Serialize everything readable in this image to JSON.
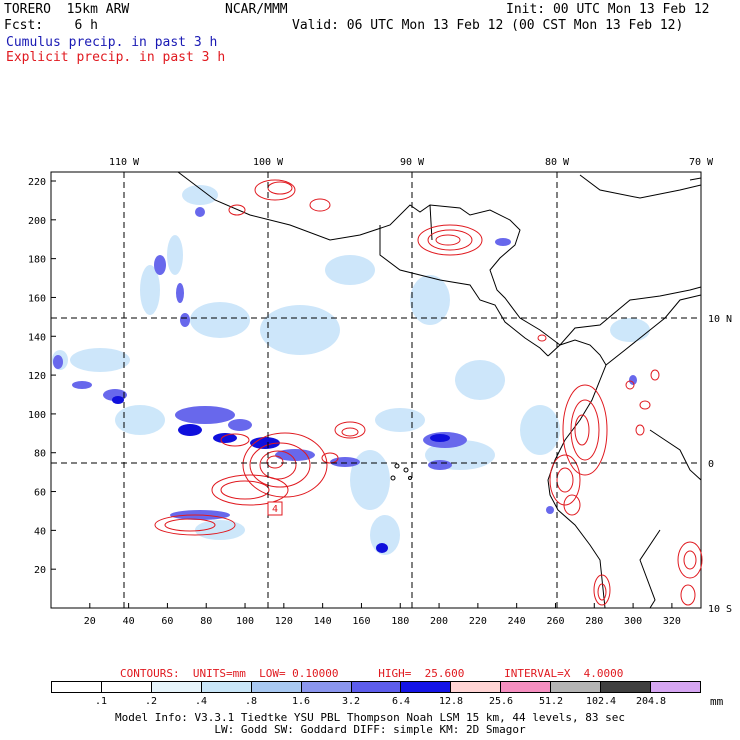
{
  "header": {
    "model": "TORERO  15km ARW",
    "center": "NCAR/MMM",
    "init": "Init: 00 UTC Mon 13 Feb 12",
    "fcst": "Fcst:    6 h",
    "valid": "Valid: 06 UTC Mon 13 Feb 12 (00 CST Mon 13 Feb 12)",
    "line_cumulus": "Cumulus precip. in past 3 h",
    "line_explicit": "Explicit precip. in past 3 h"
  },
  "map": {
    "lon_labels": [
      "110 W",
      "100 W",
      "90 W",
      "80 W",
      "70 W"
    ],
    "lat_labels": [
      "10 N",
      "0",
      "10 S"
    ],
    "y_ticks": [
      "220",
      "200",
      "180",
      "160",
      "140",
      "120",
      "100",
      "80",
      "60",
      "40",
      "20"
    ],
    "x_ticks": [
      "20",
      "40",
      "60",
      "80",
      "100",
      "120",
      "140",
      "160",
      "180",
      "200",
      "220",
      "240",
      "260",
      "280",
      "300",
      "320"
    ],
    "box_label": "4",
    "colors": {
      "cumulus_dark": "#1010dc",
      "cumulus_mid": "#6868ec",
      "cumulus_light": "#c8e4fa",
      "explicit": "#e0191f"
    }
  },
  "legend": {
    "contours_text": "CONTOURS:  UNITS=mm  LOW= 0.10000      HIGH=  25.600      INTERVAL=X  4.0000",
    "unit": "mm",
    "labels": [
      ".1",
      ".2",
      ".4",
      ".8",
      "1.6",
      "3.2",
      "6.4",
      "12.8",
      "25.6",
      "51.2",
      "102.4",
      "204.8"
    ],
    "colors": [
      "#ffffff",
      "#ffffff",
      "#e6f4fb",
      "#c9e6f8",
      "#a9c9f2",
      "#8b96ee",
      "#5d5dec",
      "#1414e6",
      "#ffd4d4",
      "#f58fc0",
      "#b4b4b4",
      "#404040",
      "#d6a6f2"
    ]
  },
  "footer": {
    "line1": "Model Info: V3.3.1    Tiedtke YSU PBL  Thompson    Noah LSM  15 km,   44 levels,   83 sec",
    "line2": "LW: Godd SW: Goddard DIFF: simple KM: 2D Smagor"
  }
}
